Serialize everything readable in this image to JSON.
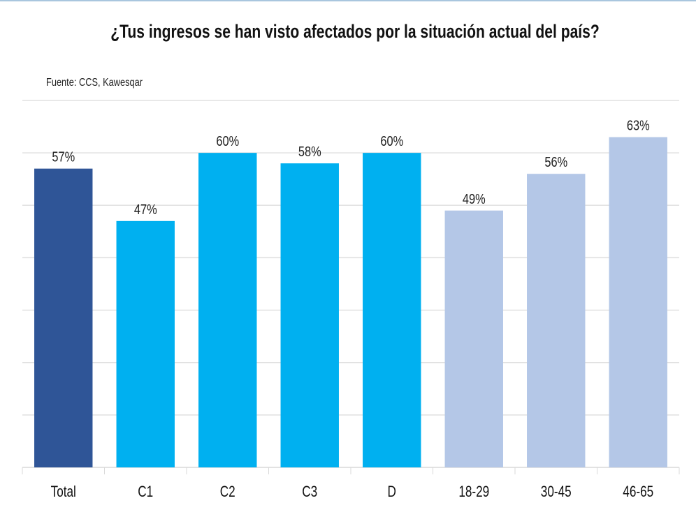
{
  "header": {
    "title": "¿Tus ingresos se han visto afectados por la situación actual del país?",
    "source": "Fuente: CCS, Kawesqar"
  },
  "colors": {
    "total": "#2f5597",
    "nse": "#00b0f0",
    "age": "#b4c7e7",
    "grid": "#e0e0e0"
  },
  "chart_data": {
    "type": "bar",
    "title": "¿Tus ingresos se han visto afectados por la situación actual del país?",
    "xlabel": "",
    "ylabel": "",
    "ylim": [
      0,
      70
    ],
    "grid": true,
    "y_ticks_visible": false,
    "categories": [
      "Total",
      "C1",
      "C2",
      "C3",
      "D",
      "18-29",
      "30-45",
      "46-65"
    ],
    "values": [
      57,
      47,
      60,
      58,
      60,
      49,
      56,
      63
    ],
    "labels": [
      "57%",
      "47%",
      "60%",
      "58%",
      "60%",
      "49%",
      "56%",
      "63%"
    ],
    "groups": [
      "total",
      "nse",
      "nse",
      "nse",
      "nse",
      "age",
      "age",
      "age"
    ],
    "unit": "%"
  }
}
